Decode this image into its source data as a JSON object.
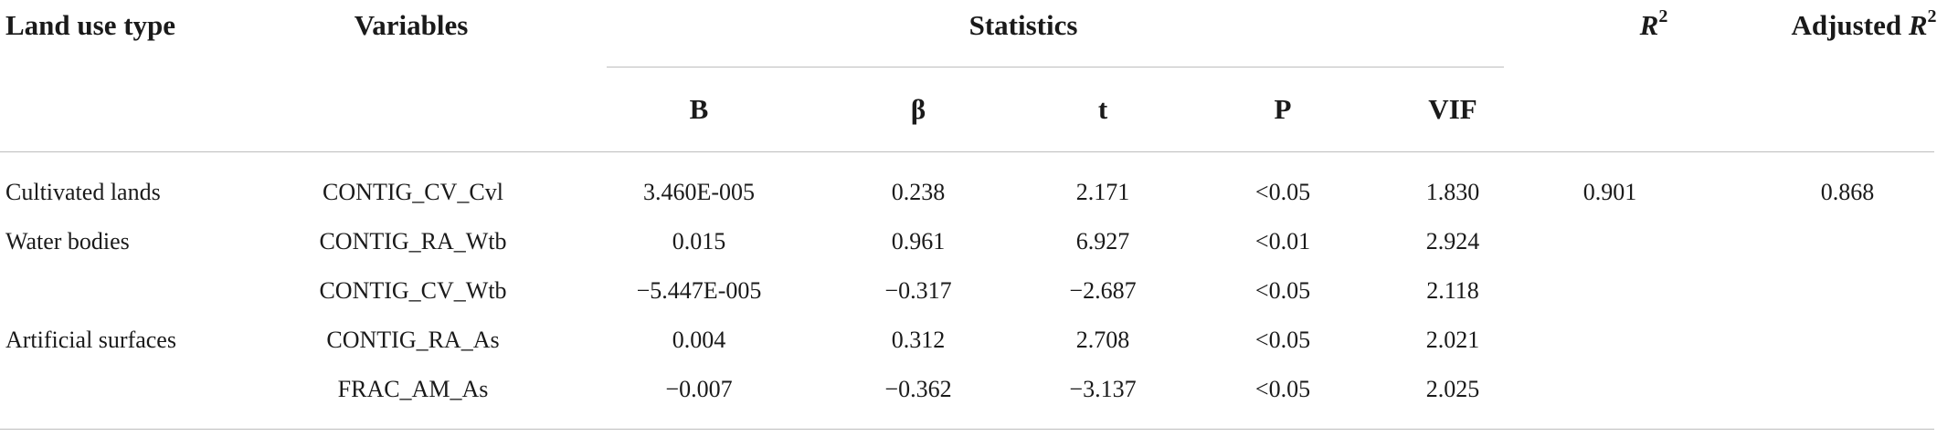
{
  "table": {
    "headers": {
      "land_use_type": "Land use type",
      "variables": "Variables",
      "statistics": "Statistics",
      "r2": "R",
      "r2_sup": "2",
      "adj_r2_prefix": "Adjusted ",
      "adj_r2_r": "R",
      "adj_r2_sup": "2"
    },
    "subheaders": [
      "B",
      "β",
      "t",
      "P",
      "VIF"
    ],
    "rows": [
      {
        "land_use_type": "Cultivated lands",
        "variable": "CONTIG_CV_Cvl",
        "B": "3.460E-005",
        "beta": "0.238",
        "t": "2.171",
        "P": "<0.05",
        "VIF": "1.830",
        "r2": "0.901",
        "adj_r2": "0.868"
      },
      {
        "land_use_type": "Water bodies",
        "variable": "CONTIG_RA_Wtb",
        "B": "0.015",
        "beta": "0.961",
        "t": "6.927",
        "P": "<0.01",
        "VIF": "2.924",
        "r2": "",
        "adj_r2": ""
      },
      {
        "land_use_type": "",
        "variable": "CONTIG_CV_Wtb",
        "B": "−5.447E-005",
        "beta": "−0.317",
        "t": "−2.687",
        "P": "<0.05",
        "VIF": "2.118",
        "r2": "",
        "adj_r2": ""
      },
      {
        "land_use_type": "Artificial surfaces",
        "variable": "CONTIG_RA_As",
        "B": "0.004",
        "beta": "0.312",
        "t": "2.708",
        "P": "<0.05",
        "VIF": "2.021",
        "r2": "",
        "adj_r2": ""
      },
      {
        "land_use_type": "",
        "variable": "FRAC_AM_As",
        "B": "−0.007",
        "beta": "−0.362",
        "t": "−3.137",
        "P": "<0.05",
        "VIF": "2.025",
        "r2": "",
        "adj_r2": ""
      }
    ]
  }
}
